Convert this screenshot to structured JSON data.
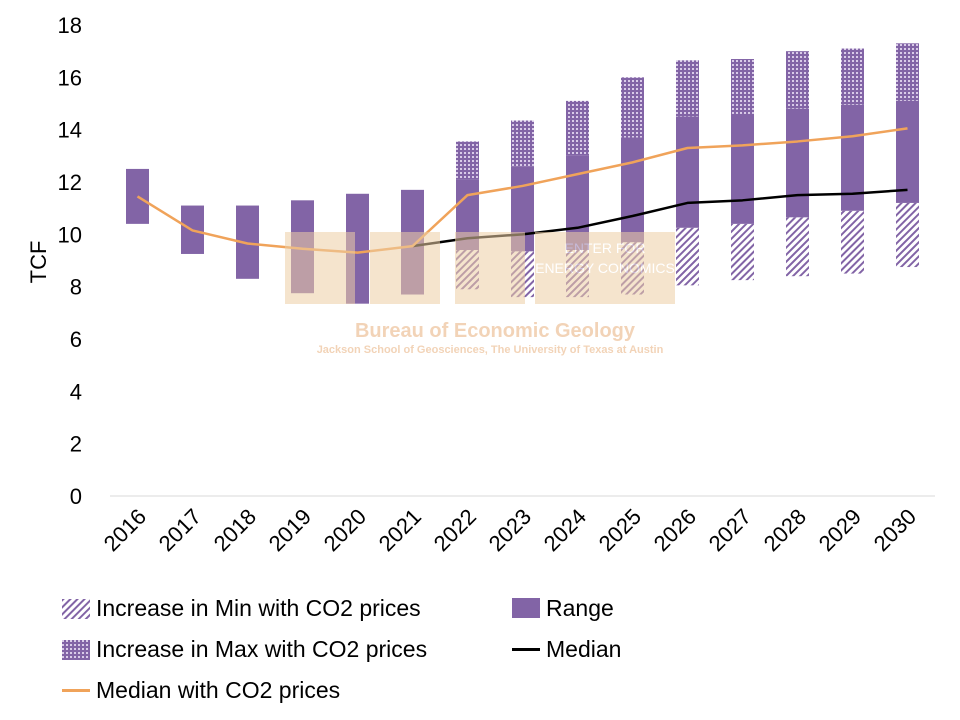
{
  "chart_data": {
    "type": "bar",
    "title": "",
    "ylabel": "TCF",
    "xlabel": "",
    "ylim": [
      0,
      18
    ],
    "yticks": [
      0,
      2,
      4,
      6,
      8,
      10,
      12,
      14,
      16,
      18
    ],
    "grid": false,
    "legend_position": "bottom",
    "categories": [
      "2016",
      "2017",
      "2018",
      "2019",
      "2020",
      "2021",
      "2022",
      "2023",
      "2024",
      "2025",
      "2026",
      "2027",
      "2028",
      "2029",
      "2030"
    ],
    "range": {
      "name": "Range",
      "min": [
        10.4,
        9.25,
        8.3,
        7.75,
        7.35,
        7.7,
        9.4,
        9.35,
        9.4,
        9.7,
        10.25,
        10.4,
        10.65,
        10.9,
        11.2
      ],
      "max": [
        12.5,
        11.1,
        11.1,
        11.3,
        11.55,
        11.7,
        12.1,
        12.6,
        13.0,
        13.7,
        14.5,
        14.6,
        14.8,
        14.95,
        15.1
      ]
    },
    "increase_min": {
      "name": "Increase in Min with CO2 prices",
      "min": [
        null,
        null,
        null,
        null,
        null,
        null,
        7.9,
        7.6,
        7.6,
        7.7,
        8.05,
        8.25,
        8.4,
        8.5,
        8.75
      ]
    },
    "increase_max": {
      "name": "Increase in Max with CO2 prices",
      "max": [
        null,
        null,
        null,
        null,
        null,
        null,
        13.55,
        14.35,
        15.1,
        16.0,
        16.65,
        16.7,
        17.0,
        17.1,
        17.3
      ]
    },
    "series": [
      {
        "name": "Median",
        "values": [
          null,
          null,
          null,
          null,
          null,
          9.55,
          9.85,
          10.0,
          10.25,
          10.7,
          11.2,
          11.3,
          11.5,
          11.55,
          11.7
        ]
      },
      {
        "name": "Median with CO2 prices",
        "values": [
          11.45,
          10.15,
          9.65,
          9.45,
          9.3,
          9.55,
          11.5,
          11.85,
          12.3,
          12.75,
          13.3,
          13.4,
          13.55,
          13.75,
          14.05
        ]
      }
    ],
    "colors": {
      "range": "#8264a6",
      "pattern": "#8264a6",
      "median": "#000000",
      "median_co2": "#f0a35a"
    }
  },
  "watermark": {
    "block_text": "ENTER FOR ENERGY CONOMICS",
    "title": "Bureau of Economic Geology",
    "subtitle": "Jackson School of Geosciences, The University of Texas at Austin"
  },
  "legend": {
    "increase_min": "Increase in Min with CO2 prices",
    "range": "Range",
    "increase_max": "Increase in Max with CO2 prices",
    "median": "Median",
    "median_co2": "Median with CO2 prices"
  }
}
